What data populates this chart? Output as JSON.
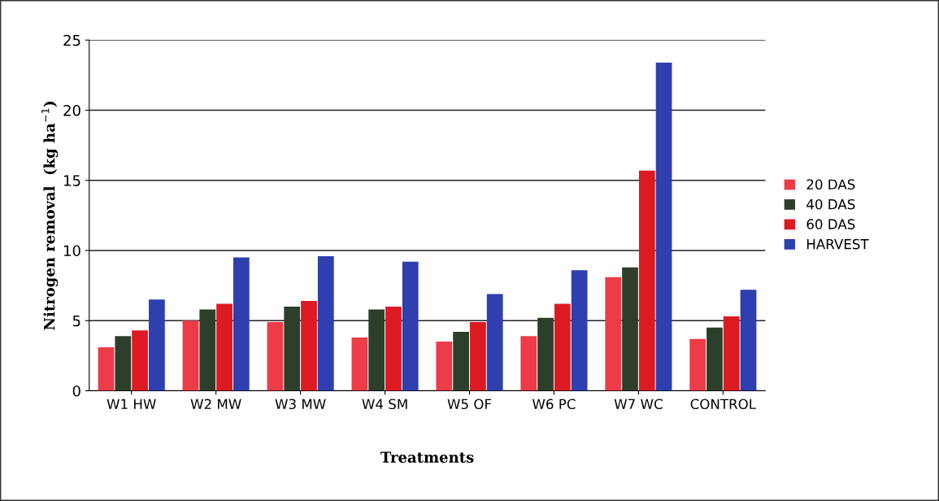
{
  "chart_data": {
    "type": "bar",
    "xlabel": "Treatments",
    "ylabel": "Nitrogen removal  (kg ha$^{−1}$)",
    "categories": [
      "W1 HW",
      "W2 MW",
      "W3 MW",
      "W4 SM",
      "W5 OF",
      "W6 PC",
      "W7 WC",
      "CONTROL"
    ],
    "series": [
      {
        "name": "20 DAS",
        "color": "#ee3b48",
        "values": [
          3.1,
          5.0,
          4.9,
          3.8,
          3.5,
          3.9,
          8.1,
          3.7
        ]
      },
      {
        "name": "40 DAS",
        "color": "#2d3f2b",
        "values": [
          3.9,
          5.8,
          6.0,
          5.8,
          4.2,
          5.2,
          8.8,
          4.5
        ]
      },
      {
        "name": "60 DAS",
        "color": "#dd1a22",
        "values": [
          4.3,
          6.2,
          6.4,
          6.0,
          4.9,
          6.2,
          15.7,
          5.3
        ]
      },
      {
        "name": "HARVEST",
        "color": "#2f3fb0",
        "values": [
          6.5,
          9.5,
          9.6,
          9.2,
          6.9,
          8.6,
          23.4,
          7.2
        ]
      }
    ],
    "ylim": [
      0,
      25
    ],
    "yticks": [
      0,
      5,
      10,
      15,
      20,
      25
    ],
    "grid": "y",
    "legend": "right"
  }
}
